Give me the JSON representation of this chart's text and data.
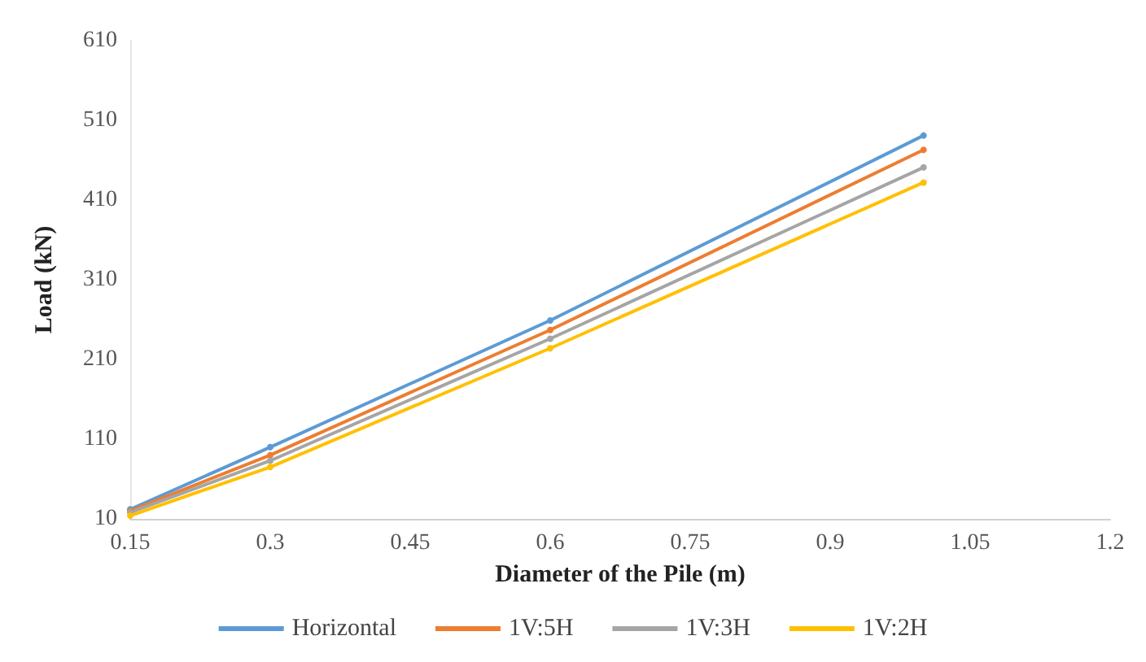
{
  "chart_data": {
    "type": "line",
    "xlabel": "Diameter of the Pile (m)",
    "ylabel": "Load (kN)",
    "x": [
      0.15,
      0.3,
      0.6,
      1.0
    ],
    "xlim": [
      0.15,
      1.2
    ],
    "xticks": [
      0.15,
      0.3,
      0.45,
      0.6,
      0.75,
      0.9,
      1.05,
      1.2
    ],
    "ylim": [
      10,
      610
    ],
    "yticks": [
      10,
      110,
      210,
      310,
      410,
      510,
      610
    ],
    "series": [
      {
        "name": "Horizontal",
        "color": "#5b9bd5",
        "values": [
          22,
          100,
          259,
          491
        ]
      },
      {
        "name": "1V:5H",
        "color": "#ed7d31",
        "values": [
          20,
          90,
          247,
          473
        ]
      },
      {
        "name": "1V:3H",
        "color": "#a5a5a5",
        "values": [
          18,
          83,
          236,
          451
        ]
      },
      {
        "name": "1V:2H",
        "color": "#ffc000",
        "values": [
          14,
          75,
          224,
          432
        ]
      }
    ],
    "grid": false,
    "legend": "bottom",
    "marker": "circle",
    "line_style": "solid"
  }
}
